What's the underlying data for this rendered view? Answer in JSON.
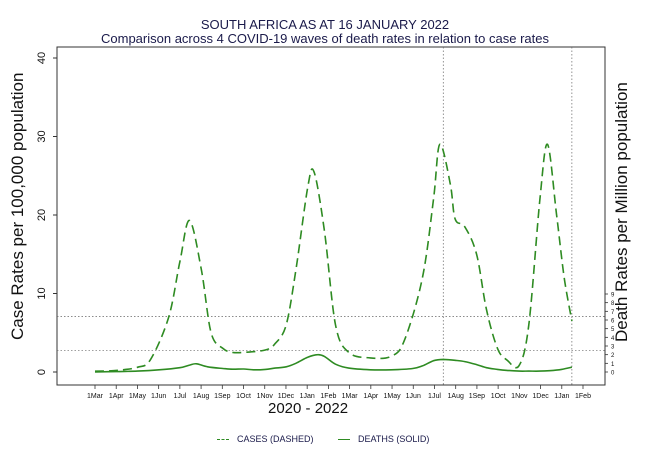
{
  "title": "SOUTH AFRICA AS AT 16 JANUARY 2022",
  "subtitle": "Comparison across 4 COVID-19 waves of death rates in relation to case rates",
  "chart_data": {
    "type": "line",
    "title": "SOUTH AFRICA AS AT 16 JANUARY 2022",
    "subtitle": "Comparison across 4 COVID-19 waves of death rates in relation to case rates",
    "xlabel": "2020 - 2022",
    "ylabel_left": "Case Rates per 100,000 population",
    "ylabel_right": "Death Rates per Million population",
    "x_ticks": [
      "1Mar",
      "1Apr",
      "1May",
      "1Jun",
      "1Jul",
      "1Aug",
      "1Sep",
      "1Oct",
      "1Nov",
      "1Dec",
      "1Jan",
      "1Feb",
      "1Mar",
      "1Apr",
      "1May",
      "1Jun",
      "1Jul",
      "1Aug",
      "1Sep",
      "1Oct",
      "1Nov",
      "1Dec",
      "1Jan",
      "1Feb"
    ],
    "y_left_ticks": [
      0,
      10,
      20,
      30,
      40
    ],
    "y_left_range": [
      0,
      40
    ],
    "y_right_ticks": [
      0,
      1,
      2,
      3,
      4,
      5,
      6,
      7,
      8,
      9
    ],
    "y_right_range": [
      0,
      9
    ],
    "line_color": "#2e8b22",
    "reference_lines": {
      "horizontal": [
        2.5,
        6.4
      ],
      "vertical": [
        "2021-07-15",
        "2022-01-16"
      ]
    },
    "series": [
      {
        "name": "CASES (DASHED)",
        "style": "dashed",
        "axis": "left",
        "x": [
          "2020-03-01",
          "2020-04-01",
          "2020-05-01",
          "2020-05-20",
          "2020-06-15",
          "2020-07-01",
          "2020-07-15",
          "2020-08-01",
          "2020-08-15",
          "2020-09-01",
          "2020-09-15",
          "2020-10-01",
          "2020-11-01",
          "2020-11-15",
          "2020-12-01",
          "2020-12-15",
          "2021-01-01",
          "2021-01-10",
          "2021-01-25",
          "2021-02-10",
          "2021-03-01",
          "2021-04-01",
          "2021-05-01",
          "2021-05-20",
          "2021-06-15",
          "2021-07-01",
          "2021-07-10",
          "2021-07-25",
          "2021-08-01",
          "2021-08-15",
          "2021-09-01",
          "2021-09-15",
          "2021-10-01",
          "2021-10-15",
          "2021-11-01",
          "2021-11-15",
          "2021-12-01",
          "2021-12-12",
          "2021-12-25",
          "2022-01-05",
          "2022-01-16"
        ],
        "y": [
          0.1,
          0.2,
          0.6,
          1.6,
          7.0,
          14.0,
          19.3,
          13.0,
          5.0,
          3.0,
          2.5,
          2.5,
          2.8,
          3.6,
          6.0,
          13.0,
          23.5,
          25.5,
          18.0,
          6.0,
          2.5,
          1.8,
          2.0,
          4.0,
          12.0,
          22.0,
          29.0,
          24.0,
          19.5,
          18.5,
          15.0,
          8.0,
          3.0,
          1.5,
          0.8,
          6.0,
          22.0,
          29.0,
          20.0,
          12.0,
          6.5
        ]
      },
      {
        "name": "DEATHS (SOLID)",
        "style": "solid",
        "axis": "right",
        "x": [
          "2020-03-01",
          "2020-04-01",
          "2020-05-01",
          "2020-06-01",
          "2020-07-01",
          "2020-07-15",
          "2020-07-25",
          "2020-08-10",
          "2020-09-01",
          "2020-09-15",
          "2020-10-01",
          "2020-10-15",
          "2020-11-01",
          "2020-11-15",
          "2020-12-01",
          "2020-12-15",
          "2021-01-01",
          "2021-01-15",
          "2021-01-25",
          "2021-02-10",
          "2021-03-01",
          "2021-04-01",
          "2021-05-01",
          "2021-06-01",
          "2021-06-15",
          "2021-07-01",
          "2021-07-15",
          "2021-08-01",
          "2021-08-15",
          "2021-09-01",
          "2021-09-15",
          "2021-10-01",
          "2021-10-15",
          "2021-11-01",
          "2021-11-15",
          "2021-12-01",
          "2021-12-15",
          "2022-01-01",
          "2022-01-16"
        ],
        "y": [
          0.0,
          0.05,
          0.1,
          0.25,
          0.5,
          0.8,
          0.95,
          0.6,
          0.4,
          0.32,
          0.35,
          0.25,
          0.3,
          0.45,
          0.6,
          1.0,
          1.7,
          2.0,
          1.8,
          0.9,
          0.45,
          0.25,
          0.25,
          0.4,
          0.7,
          1.3,
          1.45,
          1.35,
          1.2,
          0.85,
          0.5,
          0.3,
          0.18,
          0.1,
          0.1,
          0.1,
          0.15,
          0.3,
          0.55
        ]
      }
    ],
    "legend_position": "bottom",
    "grid": false
  }
}
